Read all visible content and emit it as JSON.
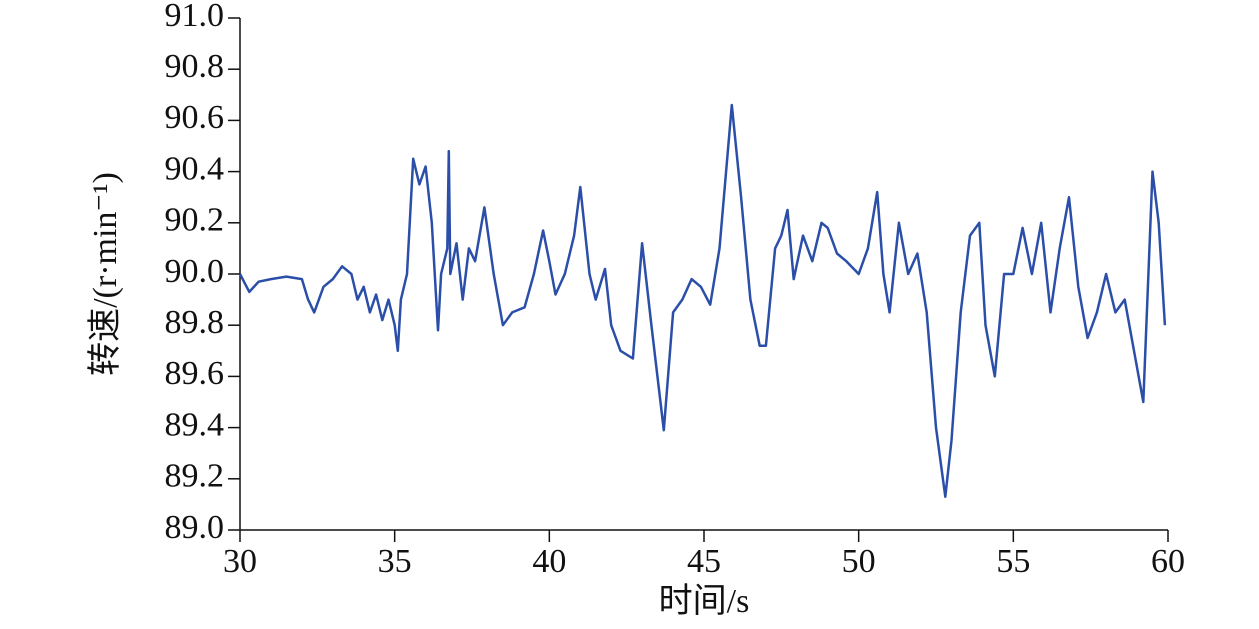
{
  "chart_data": {
    "type": "line",
    "x_label": "时间/s",
    "y_label": "转速/(r·min⁻¹)",
    "xlim": [
      30,
      60
    ],
    "xticks": [
      30,
      35,
      40,
      45,
      50,
      55,
      60
    ],
    "ylim": [
      89.0,
      91.0
    ],
    "yticks": [
      {
        "value": 89.0,
        "label": "89.0"
      },
      89.2,
      89.4,
      89.6,
      89.8,
      {
        "value": 90.0,
        "label": "90.0"
      },
      90.2,
      90.4,
      90.6,
      90.8,
      {
        "value": 91.0,
        "label": "91.0"
      }
    ],
    "series": [
      {
        "color": "#2b4fa8",
        "x": [
          30.0,
          30.3,
          30.6,
          31,
          31.5,
          32,
          32.2,
          32.4,
          32.7,
          33,
          33.3,
          33.6,
          33.8,
          34.0,
          34.2,
          34.4,
          34.6,
          34.8,
          35.0,
          35.1,
          35.2,
          35.4,
          35.6,
          35.8,
          36.0,
          36.2,
          36.4,
          36.5,
          36.7,
          36.75,
          36.8,
          37.0,
          37.2,
          37.4,
          37.6,
          37.9,
          38.2,
          38.5,
          38.8,
          39.2,
          39.5,
          39.8,
          40.0,
          40.2,
          40.5,
          40.8,
          41.0,
          41.3,
          41.5,
          41.8,
          42.0,
          42.3,
          42.7,
          43.0,
          43.3,
          43.7,
          44.0,
          44.3,
          44.6,
          44.9,
          45.2,
          45.5,
          45.9,
          46.2,
          46.5,
          46.8,
          47.0,
          47.3,
          47.5,
          47.7,
          47.9,
          48.2,
          48.5,
          48.8,
          49.0,
          49.3,
          49.6,
          50.0,
          50.3,
          50.6,
          50.8,
          51.0,
          51.3,
          51.6,
          51.9,
          52.2,
          52.5,
          52.8,
          53.0,
          53.3,
          53.6,
          53.9,
          54.1,
          54.4,
          54.7,
          55.0,
          55.3,
          55.6,
          55.9,
          56.2,
          56.5,
          56.8,
          57.1,
          57.4,
          57.7,
          58.0,
          58.3,
          58.6,
          58.9,
          59.2,
          59.5,
          59.7,
          59.9
        ],
        "values": [
          90.0,
          89.93,
          89.97,
          89.98,
          89.99,
          89.98,
          89.9,
          89.85,
          89.95,
          89.98,
          90.03,
          90.0,
          89.9,
          89.95,
          89.85,
          89.92,
          89.82,
          89.9,
          89.8,
          89.7,
          89.9,
          90.0,
          90.45,
          90.35,
          90.42,
          90.2,
          89.78,
          90.0,
          90.1,
          90.48,
          90.0,
          90.12,
          89.9,
          90.1,
          90.05,
          90.26,
          90.0,
          89.8,
          89.85,
          89.87,
          90.0,
          90.17,
          90.05,
          89.92,
          90.0,
          90.15,
          90.34,
          90.0,
          89.9,
          90.02,
          89.8,
          89.7,
          89.67,
          90.12,
          89.8,
          89.39,
          89.85,
          89.9,
          89.98,
          89.95,
          89.88,
          90.1,
          90.66,
          90.3,
          89.9,
          89.72,
          89.72,
          90.1,
          90.15,
          90.25,
          89.98,
          90.15,
          90.05,
          90.2,
          90.18,
          90.08,
          90.05,
          90.0,
          90.1,
          90.32,
          90.0,
          89.85,
          90.2,
          90.0,
          90.08,
          89.85,
          89.4,
          89.13,
          89.35,
          89.85,
          90.15,
          90.2,
          89.8,
          89.6,
          90.0,
          90.0,
          90.18,
          90.0,
          90.2,
          89.85,
          90.1,
          90.3,
          89.95,
          89.75,
          89.85,
          90.0,
          89.85,
          89.9,
          89.7,
          89.5,
          90.4,
          90.2,
          89.8
        ]
      }
    ]
  }
}
